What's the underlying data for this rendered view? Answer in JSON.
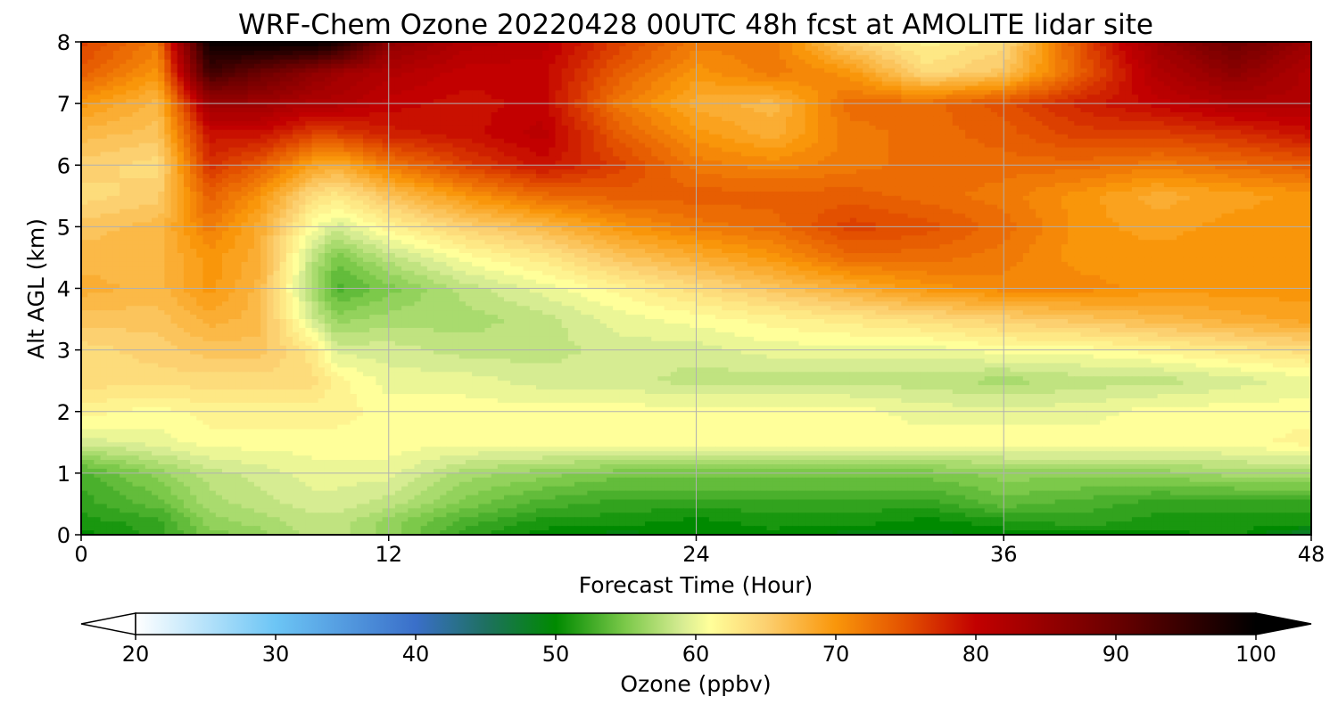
{
  "chart_data": {
    "type": "heatmap",
    "title": "WRF-Chem Ozone  20220428 00UTC 48h fcst at AMOLITE lidar site",
    "xlabel": "Forecast Time (Hour)",
    "ylabel": "Alt AGL (km)",
    "xlim": [
      0,
      48
    ],
    "ylim": [
      0,
      8
    ],
    "x_ticks": [
      "0",
      "12",
      "24",
      "36",
      "48"
    ],
    "y_ticks": [
      "0",
      "1",
      "2",
      "3",
      "4",
      "5",
      "6",
      "7",
      "8"
    ],
    "grid": true,
    "colorbar": {
      "label": "Ozone  (ppbv)",
      "range": [
        20,
        100
      ],
      "ticks": [
        "20",
        "30",
        "40",
        "50",
        "60",
        "70",
        "80",
        "90",
        "100"
      ],
      "extend": "both",
      "colormap": [
        {
          "v": 20,
          "c": "#ffffff"
        },
        {
          "v": 30,
          "c": "#6cc5f5"
        },
        {
          "v": 40,
          "c": "#3a6fc9"
        },
        {
          "v": 45,
          "c": "#1e7060"
        },
        {
          "v": 50,
          "c": "#008a00"
        },
        {
          "v": 55,
          "c": "#7cc94a"
        },
        {
          "v": 59,
          "c": "#d6ec92"
        },
        {
          "v": 61,
          "c": "#ffff9a"
        },
        {
          "v": 65,
          "c": "#fcd070"
        },
        {
          "v": 70,
          "c": "#f9960a"
        },
        {
          "v": 75,
          "c": "#e35000"
        },
        {
          "v": 80,
          "c": "#c20000"
        },
        {
          "v": 90,
          "c": "#6a0000"
        },
        {
          "v": 100,
          "c": "#000000"
        }
      ],
      "under_color": "#ffffff",
      "over_color": "#000000"
    },
    "field": {
      "x": [
        0,
        3,
        5,
        7,
        9,
        10,
        12,
        15,
        18,
        21,
        24,
        27,
        30,
        33,
        36,
        39,
        42,
        45,
        48
      ],
      "y": [
        0,
        0.2,
        0.5,
        1,
        1.5,
        2,
        2.5,
        3,
        3.5,
        4,
        4.5,
        5,
        5.5,
        6,
        6.5,
        7,
        7.5,
        8
      ],
      "z": [
        [
          50,
          52,
          55,
          56,
          58,
          58,
          56,
          52,
          50,
          49,
          50,
          50,
          49,
          49,
          50,
          50,
          50,
          51,
          47
        ],
        [
          51,
          52,
          56,
          57,
          58,
          58,
          56,
          53,
          51,
          51,
          50,
          51,
          51,
          50,
          51,
          52,
          51,
          51,
          51
        ],
        [
          52,
          54,
          57,
          58,
          59,
          59,
          58,
          55,
          53,
          52,
          52,
          52,
          52,
          52,
          54,
          53,
          52,
          52,
          52
        ],
        [
          53,
          56,
          58,
          59,
          60,
          60,
          60,
          57,
          56,
          55,
          55,
          55,
          55,
          55,
          56,
          56,
          56,
          57,
          57
        ],
        [
          59,
          60,
          61,
          61,
          61,
          61,
          61,
          61,
          61,
          61,
          61,
          61,
          61,
          61,
          61,
          61,
          61,
          61,
          62
        ],
        [
          62,
          61,
          62,
          62,
          62,
          62,
          61,
          61,
          61,
          61,
          61,
          61,
          61,
          60,
          60,
          60,
          61,
          61,
          61
        ],
        [
          64,
          64,
          64,
          64,
          64,
          62,
          60,
          60,
          59,
          59,
          58,
          58,
          58,
          58,
          57,
          58,
          58,
          59,
          60
        ],
        [
          64,
          65,
          66,
          66,
          63,
          59,
          59,
          58,
          58,
          59,
          59,
          60,
          60,
          60,
          61,
          61,
          62,
          63,
          64
        ],
        [
          66,
          66,
          68,
          67,
          59,
          56,
          57,
          57,
          58,
          60,
          61,
          62,
          63,
          64,
          65,
          66,
          67,
          68,
          69
        ],
        [
          68,
          67,
          70,
          67,
          57,
          53,
          55,
          58,
          60,
          62,
          64,
          66,
          68,
          70,
          71,
          71,
          70,
          70,
          70
        ],
        [
          67,
          67,
          70,
          68,
          58,
          55,
          58,
          61,
          63,
          66,
          68,
          70,
          73,
          73,
          72,
          70,
          70,
          70,
          70
        ],
        [
          66,
          67,
          72,
          68,
          61,
          59,
          62,
          65,
          67,
          70,
          72,
          73,
          76,
          75,
          73,
          70,
          69,
          70,
          70
        ],
        [
          64,
          65,
          74,
          70,
          64,
          63,
          66,
          70,
          73,
          74,
          74,
          74,
          74,
          73,
          72,
          70,
          68,
          69,
          70
        ],
        [
          65,
          64,
          77,
          74,
          69,
          68,
          72,
          76,
          79,
          76,
          72,
          71,
          72,
          73,
          73,
          73,
          72,
          73,
          74
        ],
        [
          67,
          66,
          79,
          79,
          76,
          76,
          78,
          79,
          81,
          74,
          70,
          68,
          72,
          73,
          74,
          76,
          76,
          77,
          79
        ],
        [
          70,
          67,
          84,
          84,
          82,
          82,
          80,
          79,
          80,
          72,
          68,
          67,
          73,
          73,
          75,
          78,
          80,
          82,
          82
        ],
        [
          74,
          70,
          94,
          90,
          86,
          84,
          82,
          80,
          80,
          74,
          70,
          72,
          70,
          64,
          66,
          74,
          82,
          86,
          82
        ],
        [
          76,
          72,
          99,
          100,
          100,
          98,
          86,
          82,
          81,
          76,
          72,
          72,
          65,
          62,
          64,
          75,
          84,
          90,
          84
        ]
      ]
    }
  }
}
